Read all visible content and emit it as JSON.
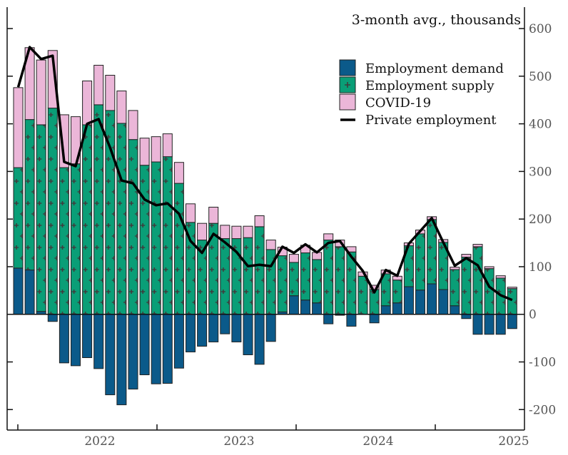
{
  "chart_data": {
    "type": "bar",
    "stacked": true,
    "unit_label": "3-month avg., thousands",
    "x": [
      "2022-01",
      "2022-02",
      "2022-03",
      "2022-04",
      "2022-05",
      "2022-06",
      "2022-07",
      "2022-08",
      "2022-09",
      "2022-10",
      "2022-11",
      "2022-12",
      "2023-01",
      "2023-02",
      "2023-03",
      "2023-04",
      "2023-05",
      "2023-06",
      "2023-07",
      "2023-08",
      "2023-09",
      "2023-10",
      "2023-11",
      "2023-12",
      "2024-01",
      "2024-02",
      "2024-03",
      "2024-04",
      "2024-05",
      "2024-06",
      "2024-07",
      "2024-08",
      "2024-09",
      "2024-10",
      "2024-11",
      "2024-12",
      "2025-01",
      "2025-02",
      "2025-03",
      "2025-04",
      "2025-05",
      "2025-06",
      "2025-07",
      "2025-08"
    ],
    "x_tick_labels": [
      "2022",
      "2023",
      "2024",
      "2025"
    ],
    "y_ticks": [
      -200,
      -100,
      0,
      100,
      200,
      300,
      400,
      500,
      600
    ],
    "ylim": [
      -240,
      645
    ],
    "y_axis_side": "right",
    "grid": false,
    "legend_position": "top-right",
    "series": [
      {
        "name": "Employment demand",
        "kind": "bar",
        "color": "#0b5a8a",
        "values": [
          97,
          93,
          6,
          -15,
          -102,
          -108,
          -91,
          -114,
          -169,
          -190,
          -157,
          -127,
          -146,
          -145,
          -113,
          -79,
          -67,
          -58,
          -41,
          -58,
          -85,
          -105,
          -57,
          5,
          39,
          30,
          24,
          -20,
          -2,
          -25,
          0,
          -18,
          18,
          24,
          58,
          51,
          64,
          52,
          18,
          -9,
          -42,
          -42,
          -42,
          -30
        ]
      },
      {
        "name": "Employment supply",
        "kind": "bar",
        "color": "#0a9e77",
        "hatch": "plus",
        "values": [
          211,
          316,
          392,
          433,
          308,
          316,
          398,
          440,
          428,
          401,
          367,
          313,
          320,
          331,
          275,
          193,
          156,
          191,
          159,
          159,
          161,
          184,
          136,
          118,
          70,
          99,
          91,
          156,
          142,
          131,
          80,
          52,
          67,
          48,
          86,
          118,
          135,
          99,
          76,
          120,
          142,
          96,
          76,
          54
        ]
      },
      {
        "name": "COVID-19",
        "kind": "bar",
        "color": "#ebb6d8",
        "values": [
          168,
          151,
          136,
          121,
          111,
          99,
          92,
          83,
          74,
          68,
          61,
          57,
          53,
          48,
          44,
          39,
          35,
          34,
          28,
          26,
          24,
          23,
          20,
          18,
          17,
          16,
          15,
          13,
          14,
          11,
          9,
          9,
          8,
          8,
          6,
          8,
          6,
          6,
          5,
          6,
          5,
          4,
          5,
          3
        ]
      },
      {
        "name": "Private employment",
        "kind": "line",
        "color": "#000000",
        "values": [
          477,
          561,
          536,
          543,
          320,
          311,
          400,
          410,
          350,
          281,
          275,
          241,
          229,
          233,
          211,
          154,
          129,
          169,
          151,
          131,
          101,
          104,
          101,
          142,
          129,
          147,
          130,
          150,
          154,
          121,
          91,
          46,
          93,
          81,
          148,
          175,
          202,
          151,
          102,
          118,
          103,
          58,
          40,
          30
        ]
      }
    ]
  }
}
